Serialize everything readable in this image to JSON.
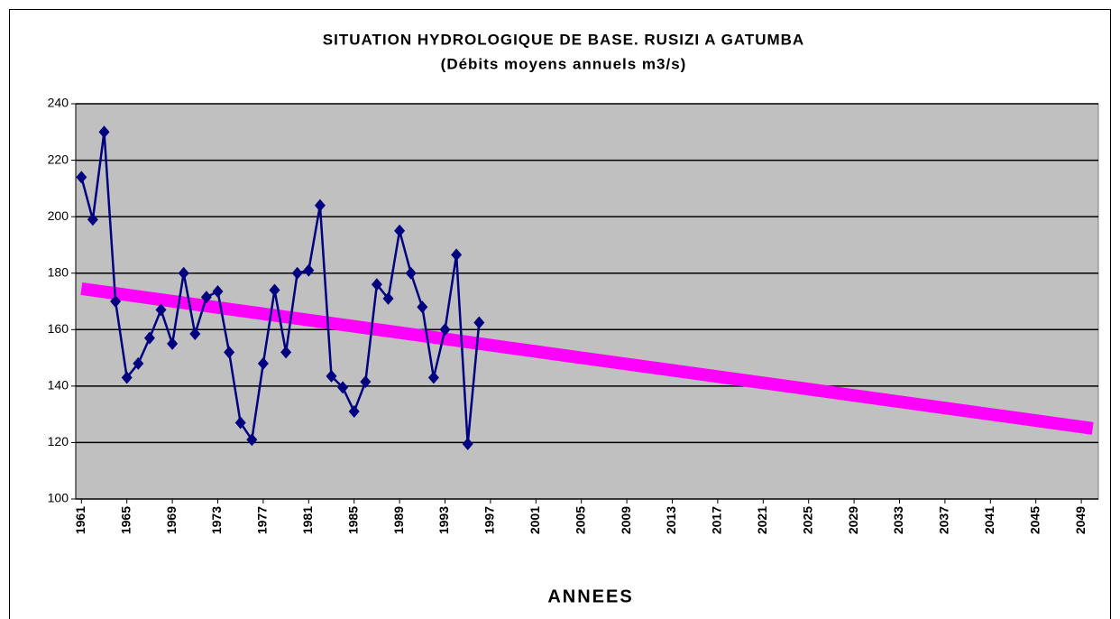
{
  "chart_data": {
    "type": "line",
    "title": "SITUATION  HYDROLOGIQUE DE BASE. RUSIZI A GATUMBA",
    "subtitle": "(Débits moyens annuels m3/s)",
    "x_label": "ANNEES",
    "series": [
      {
        "color": "#ff00ff",
        "kind": "trend",
        "x": [
          1961,
          2050
        ],
        "values": [
          174.5,
          125
        ]
      },
      {
        "color": "#000080",
        "x": [
          1961,
          1962,
          1963,
          1964,
          1965,
          1966,
          1967,
          1968,
          1969,
          1970,
          1971,
          1972,
          1973,
          1974,
          1975,
          1976,
          1977,
          1978,
          1979,
          1980,
          1981,
          1982,
          1983,
          1984,
          1985,
          1986,
          1987,
          1988,
          1989,
          1990,
          1991,
          1992,
          1993,
          1994,
          1995,
          1996
        ],
        "values": [
          214,
          199,
          230,
          170,
          143,
          148,
          157,
          167,
          155,
          180,
          158.5,
          171.5,
          173.5,
          152,
          127,
          121,
          148,
          174,
          152,
          180,
          181,
          204,
          143.5,
          139.5,
          131,
          141.5,
          176,
          171,
          195,
          180,
          168,
          143,
          160,
          186.5,
          119.5,
          162.5
        ]
      }
    ],
    "xlim": [
      1960.5,
      2050.5
    ],
    "xticks": [
      1961,
      1965,
      1969,
      1973,
      1977,
      1981,
      1985,
      1989,
      1993,
      1997,
      2001,
      2005,
      2009,
      2013,
      2017,
      2021,
      2025,
      2029,
      2033,
      2037,
      2041,
      2045,
      2049
    ],
    "ylim": [
      100,
      240
    ],
    "yticks": [
      100,
      120,
      140,
      160,
      180,
      200,
      220,
      240
    ],
    "grid": true
  }
}
